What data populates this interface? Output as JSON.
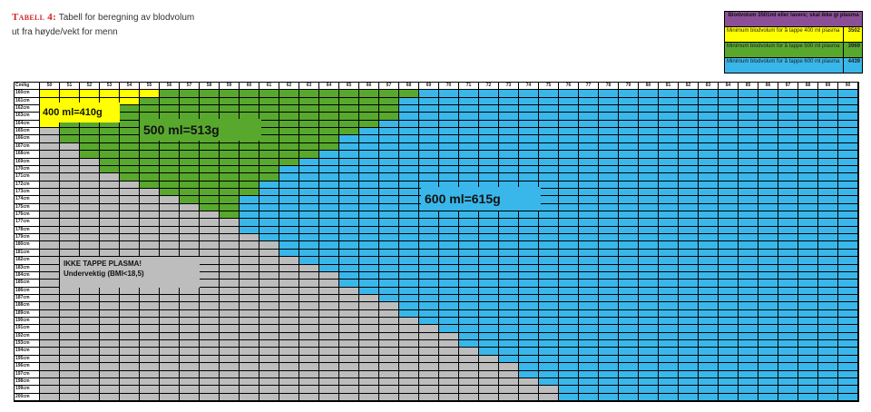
{
  "caption": {
    "tag": "Tabell 4:",
    "line1": "Tabell for beregning av blodvolum",
    "line2": "ut fra høyde/vekt for menn"
  },
  "legend": {
    "header": "Blodvolum 3501ml eller lavere; skal ikke gi plasma",
    "rows": [
      {
        "label": "Minimum blodvolum for å tappe 400 ml plasma",
        "value": "3502",
        "color": "#ffff00"
      },
      {
        "label": "Minimum blodvolum for å tappe 500 ml plasma",
        "value": "3969",
        "color": "#58a82e"
      },
      {
        "label": "Minimum blodvolum for å tappe 600 ml plasma",
        "value": "4439",
        "color": "#3ab7ea"
      }
    ]
  },
  "table": {
    "corner": "Cm/kg",
    "weights": [
      50,
      51,
      52,
      53,
      54,
      55,
      56,
      57,
      58,
      59,
      60,
      61,
      62,
      63,
      64,
      65,
      66,
      67,
      68,
      69,
      70,
      71,
      72,
      73,
      74,
      75,
      76,
      77,
      78,
      79,
      80,
      81,
      82,
      83,
      84,
      85,
      86,
      87,
      88,
      89,
      90
    ],
    "heights": [
      "160cm",
      "161cm",
      "162cm",
      "163cm",
      "164cm",
      "165cm",
      "166cm",
      "167cm",
      "168cm",
      "169cm",
      "170cm",
      "171cm",
      "172cm",
      "173cm",
      "174cm",
      "175cm",
      "176cm",
      "177cm",
      "178cm",
      "179cm",
      "180cm",
      "181cm",
      "182cm",
      "183cm",
      "184cm",
      "185cm",
      "186cm",
      "187cm",
      "188cm",
      "189cm",
      "190cm",
      "191cm",
      "192cm",
      "193cm",
      "194cm",
      "195cm",
      "196cm",
      "197cm",
      "198cm",
      "199cm",
      "200cm"
    ],
    "zones": {
      "grey_start": [
        0,
        0,
        0,
        0,
        0,
        1,
        1,
        2,
        2,
        3,
        3,
        4,
        5,
        6,
        7,
        8,
        9,
        10,
        10,
        11,
        12,
        12,
        13,
        14,
        15,
        15,
        16,
        17,
        18,
        18,
        19,
        20,
        21,
        21,
        22,
        23,
        24,
        24,
        25,
        26,
        26
      ],
      "yellow_end": [
        6,
        5,
        4,
        4,
        1,
        1,
        1,
        0,
        0,
        0,
        0,
        0,
        0,
        0,
        0,
        0,
        0,
        0,
        0,
        0,
        0,
        0,
        0,
        0,
        0,
        0,
        0,
        0,
        0,
        0,
        0,
        0,
        0,
        0,
        0,
        0,
        0,
        0,
        0,
        0,
        0
      ],
      "green_end": [
        19,
        18,
        18,
        18,
        17,
        16,
        15,
        15,
        14,
        13,
        12,
        12,
        11,
        11,
        10,
        10,
        10,
        0,
        0,
        0,
        0,
        0,
        0,
        0,
        0,
        0,
        0,
        0,
        0,
        0,
        0,
        0,
        0,
        0,
        0,
        0,
        0,
        0,
        0,
        0,
        0
      ],
      "colors": {
        "grey": "#bdbdbd",
        "yellow": "#ffff00",
        "green": "#58a82e",
        "blue": "#3ab7ea"
      }
    }
  },
  "labels": {
    "yellow": "400 ml=410g",
    "green": "500 ml=513g",
    "blue": "600 ml=615g",
    "grey_line1": "IKKE TAPPE PLASMA!",
    "grey_line2": "Undervektig (BMI<18,5)"
  }
}
